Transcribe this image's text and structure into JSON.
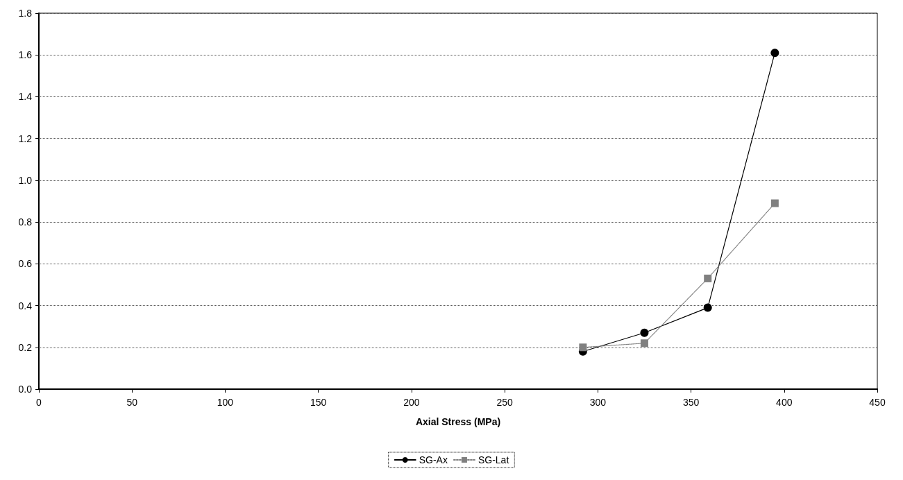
{
  "chart_data": {
    "type": "line",
    "xlabel": "Axial Stress (MPa)",
    "xlim": [
      0,
      450
    ],
    "xticks": [
      0,
      50,
      100,
      150,
      200,
      250,
      300,
      350,
      400,
      450
    ],
    "ylim": [
      0,
      1.8
    ],
    "yticks": [
      {
        "value": 0,
        "label": "0.0"
      },
      {
        "value": 0.2,
        "label": "0.2"
      },
      {
        "value": 0.4,
        "label": "0.4"
      },
      {
        "value": 0.6,
        "label": "0.6"
      },
      {
        "value": 0.8,
        "label": "0.8"
      },
      {
        "value": 1,
        "label": "1.0"
      },
      {
        "value": 1.2,
        "label": "1.2"
      },
      {
        "value": 1.4,
        "label": "1.4"
      },
      {
        "value": 1.6,
        "label": "1.6"
      },
      {
        "value": 1.8,
        "label": "1.8"
      }
    ],
    "grid": "y",
    "legend": "bottom",
    "series": [
      {
        "name": "SG-Ax",
        "color": "#000000",
        "marker": "circle",
        "line_style": "solid",
        "x": [
          292,
          325,
          359,
          395
        ],
        "values": [
          0.18,
          0.27,
          0.39,
          1.61
        ]
      },
      {
        "name": "SG-Lat",
        "color": "#808080",
        "marker": "square",
        "line_style": "dotted",
        "x": [
          292,
          325,
          359,
          395
        ],
        "values": [
          0.2,
          0.22,
          0.53,
          0.89
        ]
      }
    ]
  }
}
